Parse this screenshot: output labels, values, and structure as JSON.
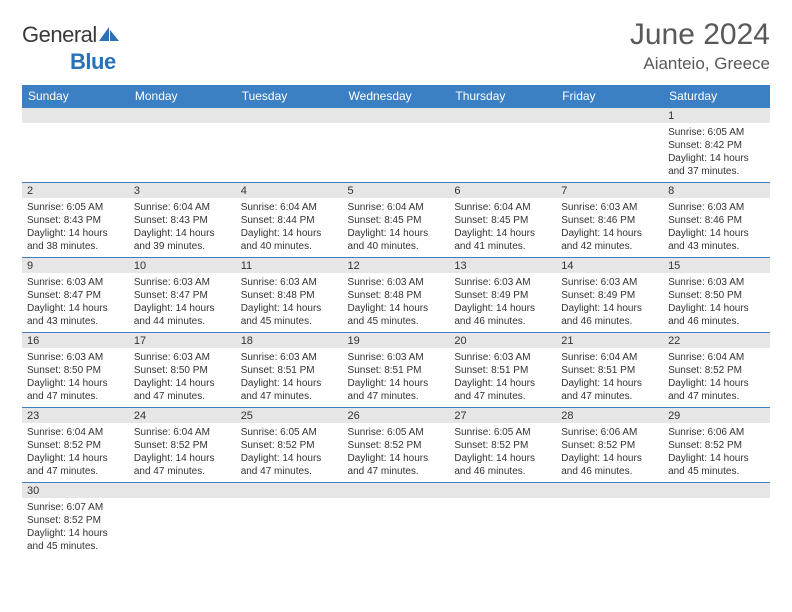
{
  "logo": {
    "first": "General",
    "second": "Blue"
  },
  "title": {
    "month": "June 2024",
    "location": "Aianteio, Greece"
  },
  "day_headers": [
    "Sunday",
    "Monday",
    "Tuesday",
    "Wednesday",
    "Thursday",
    "Friday",
    "Saturday"
  ],
  "colors": {
    "header_bg": "#3b7fc4",
    "daynum_bg": "#e6e6e6",
    "title_color": "#595959"
  },
  "weeks": [
    [
      null,
      null,
      null,
      null,
      null,
      null,
      {
        "d": "1",
        "sr": "Sunrise: 6:05 AM",
        "ss": "Sunset: 8:42 PM",
        "dl1": "Daylight: 14 hours",
        "dl2": "and 37 minutes."
      }
    ],
    [
      {
        "d": "2",
        "sr": "Sunrise: 6:05 AM",
        "ss": "Sunset: 8:43 PM",
        "dl1": "Daylight: 14 hours",
        "dl2": "and 38 minutes."
      },
      {
        "d": "3",
        "sr": "Sunrise: 6:04 AM",
        "ss": "Sunset: 8:43 PM",
        "dl1": "Daylight: 14 hours",
        "dl2": "and 39 minutes."
      },
      {
        "d": "4",
        "sr": "Sunrise: 6:04 AM",
        "ss": "Sunset: 8:44 PM",
        "dl1": "Daylight: 14 hours",
        "dl2": "and 40 minutes."
      },
      {
        "d": "5",
        "sr": "Sunrise: 6:04 AM",
        "ss": "Sunset: 8:45 PM",
        "dl1": "Daylight: 14 hours",
        "dl2": "and 40 minutes."
      },
      {
        "d": "6",
        "sr": "Sunrise: 6:04 AM",
        "ss": "Sunset: 8:45 PM",
        "dl1": "Daylight: 14 hours",
        "dl2": "and 41 minutes."
      },
      {
        "d": "7",
        "sr": "Sunrise: 6:03 AM",
        "ss": "Sunset: 8:46 PM",
        "dl1": "Daylight: 14 hours",
        "dl2": "and 42 minutes."
      },
      {
        "d": "8",
        "sr": "Sunrise: 6:03 AM",
        "ss": "Sunset: 8:46 PM",
        "dl1": "Daylight: 14 hours",
        "dl2": "and 43 minutes."
      }
    ],
    [
      {
        "d": "9",
        "sr": "Sunrise: 6:03 AM",
        "ss": "Sunset: 8:47 PM",
        "dl1": "Daylight: 14 hours",
        "dl2": "and 43 minutes."
      },
      {
        "d": "10",
        "sr": "Sunrise: 6:03 AM",
        "ss": "Sunset: 8:47 PM",
        "dl1": "Daylight: 14 hours",
        "dl2": "and 44 minutes."
      },
      {
        "d": "11",
        "sr": "Sunrise: 6:03 AM",
        "ss": "Sunset: 8:48 PM",
        "dl1": "Daylight: 14 hours",
        "dl2": "and 45 minutes."
      },
      {
        "d": "12",
        "sr": "Sunrise: 6:03 AM",
        "ss": "Sunset: 8:48 PM",
        "dl1": "Daylight: 14 hours",
        "dl2": "and 45 minutes."
      },
      {
        "d": "13",
        "sr": "Sunrise: 6:03 AM",
        "ss": "Sunset: 8:49 PM",
        "dl1": "Daylight: 14 hours",
        "dl2": "and 46 minutes."
      },
      {
        "d": "14",
        "sr": "Sunrise: 6:03 AM",
        "ss": "Sunset: 8:49 PM",
        "dl1": "Daylight: 14 hours",
        "dl2": "and 46 minutes."
      },
      {
        "d": "15",
        "sr": "Sunrise: 6:03 AM",
        "ss": "Sunset: 8:50 PM",
        "dl1": "Daylight: 14 hours",
        "dl2": "and 46 minutes."
      }
    ],
    [
      {
        "d": "16",
        "sr": "Sunrise: 6:03 AM",
        "ss": "Sunset: 8:50 PM",
        "dl1": "Daylight: 14 hours",
        "dl2": "and 47 minutes."
      },
      {
        "d": "17",
        "sr": "Sunrise: 6:03 AM",
        "ss": "Sunset: 8:50 PM",
        "dl1": "Daylight: 14 hours",
        "dl2": "and 47 minutes."
      },
      {
        "d": "18",
        "sr": "Sunrise: 6:03 AM",
        "ss": "Sunset: 8:51 PM",
        "dl1": "Daylight: 14 hours",
        "dl2": "and 47 minutes."
      },
      {
        "d": "19",
        "sr": "Sunrise: 6:03 AM",
        "ss": "Sunset: 8:51 PM",
        "dl1": "Daylight: 14 hours",
        "dl2": "and 47 minutes."
      },
      {
        "d": "20",
        "sr": "Sunrise: 6:03 AM",
        "ss": "Sunset: 8:51 PM",
        "dl1": "Daylight: 14 hours",
        "dl2": "and 47 minutes."
      },
      {
        "d": "21",
        "sr": "Sunrise: 6:04 AM",
        "ss": "Sunset: 8:51 PM",
        "dl1": "Daylight: 14 hours",
        "dl2": "and 47 minutes."
      },
      {
        "d": "22",
        "sr": "Sunrise: 6:04 AM",
        "ss": "Sunset: 8:52 PM",
        "dl1": "Daylight: 14 hours",
        "dl2": "and 47 minutes."
      }
    ],
    [
      {
        "d": "23",
        "sr": "Sunrise: 6:04 AM",
        "ss": "Sunset: 8:52 PM",
        "dl1": "Daylight: 14 hours",
        "dl2": "and 47 minutes."
      },
      {
        "d": "24",
        "sr": "Sunrise: 6:04 AM",
        "ss": "Sunset: 8:52 PM",
        "dl1": "Daylight: 14 hours",
        "dl2": "and 47 minutes."
      },
      {
        "d": "25",
        "sr": "Sunrise: 6:05 AM",
        "ss": "Sunset: 8:52 PM",
        "dl1": "Daylight: 14 hours",
        "dl2": "and 47 minutes."
      },
      {
        "d": "26",
        "sr": "Sunrise: 6:05 AM",
        "ss": "Sunset: 8:52 PM",
        "dl1": "Daylight: 14 hours",
        "dl2": "and 47 minutes."
      },
      {
        "d": "27",
        "sr": "Sunrise: 6:05 AM",
        "ss": "Sunset: 8:52 PM",
        "dl1": "Daylight: 14 hours",
        "dl2": "and 46 minutes."
      },
      {
        "d": "28",
        "sr": "Sunrise: 6:06 AM",
        "ss": "Sunset: 8:52 PM",
        "dl1": "Daylight: 14 hours",
        "dl2": "and 46 minutes."
      },
      {
        "d": "29",
        "sr": "Sunrise: 6:06 AM",
        "ss": "Sunset: 8:52 PM",
        "dl1": "Daylight: 14 hours",
        "dl2": "and 45 minutes."
      }
    ],
    [
      {
        "d": "30",
        "sr": "Sunrise: 6:07 AM",
        "ss": "Sunset: 8:52 PM",
        "dl1": "Daylight: 14 hours",
        "dl2": "and 45 minutes."
      },
      null,
      null,
      null,
      null,
      null,
      null
    ]
  ]
}
